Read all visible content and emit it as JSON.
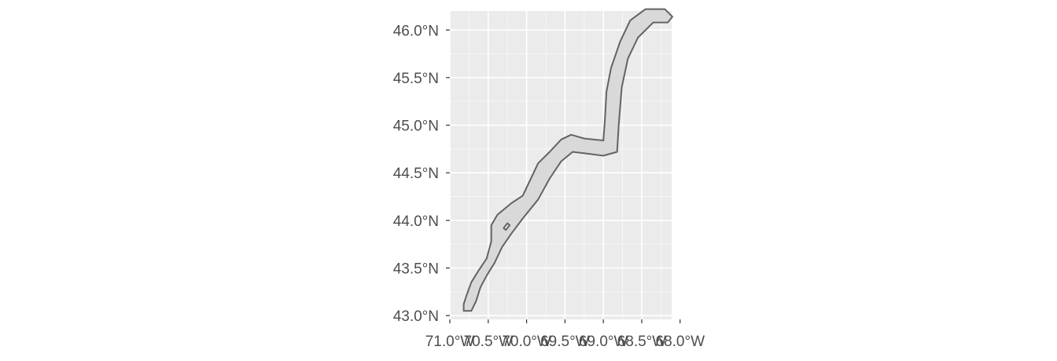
{
  "map": {
    "background_color": "#ebebeb",
    "buffer_fill": "#d9d9d9",
    "buffer_stroke": "#636363",
    "lon_range": [
      -71.0,
      -68.1
    ],
    "lat_range": [
      42.96,
      46.2
    ],
    "y_ticks": [
      {
        "value": 46.0,
        "label": "46.0°N"
      },
      {
        "value": 45.5,
        "label": "45.5°N"
      },
      {
        "value": 45.0,
        "label": "45.0°N"
      },
      {
        "value": 44.5,
        "label": "44.5°N"
      },
      {
        "value": 44.0,
        "label": "44.0°N"
      },
      {
        "value": 43.5,
        "label": "43.5°N"
      },
      {
        "value": 43.0,
        "label": "43.0°N"
      }
    ],
    "x_ticks": [
      {
        "value": -71.0,
        "label": "71.0°W"
      },
      {
        "value": -70.5,
        "label": "70.5°W"
      },
      {
        "value": -70.0,
        "label": "70.0°W"
      },
      {
        "value": -69.5,
        "label": "69.5°W"
      },
      {
        "value": -69.0,
        "label": "69.0°W"
      },
      {
        "value": -68.5,
        "label": "68.5°W"
      },
      {
        "value": -68.0,
        "label": "68.0°W"
      }
    ],
    "buffer_outline": [
      [
        -70.82,
        43.12
      ],
      [
        -70.78,
        43.22
      ],
      [
        -70.72,
        43.35
      ],
      [
        -70.62,
        43.48
      ],
      [
        -70.52,
        43.6
      ],
      [
        -70.46,
        43.78
      ],
      [
        -70.46,
        43.95
      ],
      [
        -70.38,
        44.06
      ],
      [
        -70.2,
        44.18
      ],
      [
        -70.05,
        44.26
      ],
      [
        -69.92,
        44.48
      ],
      [
        -69.85,
        44.6
      ],
      [
        -69.7,
        44.72
      ],
      [
        -69.55,
        44.85
      ],
      [
        -69.42,
        44.9
      ],
      [
        -69.25,
        44.86
      ],
      [
        -69.0,
        44.84
      ],
      [
        -68.98,
        45.05
      ],
      [
        -68.96,
        45.35
      ],
      [
        -68.9,
        45.6
      ],
      [
        -68.78,
        45.88
      ],
      [
        -68.65,
        46.1
      ],
      [
        -68.45,
        46.22
      ],
      [
        -68.2,
        46.22
      ],
      [
        -68.1,
        46.14
      ],
      [
        -68.16,
        46.08
      ],
      [
        -68.35,
        46.08
      ],
      [
        -68.55,
        45.92
      ],
      [
        -68.68,
        45.7
      ],
      [
        -68.76,
        45.4
      ],
      [
        -68.8,
        45.0
      ],
      [
        -68.82,
        44.72
      ],
      [
        -69.0,
        44.68
      ],
      [
        -69.2,
        44.7
      ],
      [
        -69.4,
        44.72
      ],
      [
        -69.55,
        44.62
      ],
      [
        -69.7,
        44.44
      ],
      [
        -69.85,
        44.22
      ],
      [
        -70.05,
        44.02
      ],
      [
        -70.2,
        43.86
      ],
      [
        -70.32,
        43.72
      ],
      [
        -70.42,
        43.55
      ],
      [
        -70.52,
        43.42
      ],
      [
        -70.6,
        43.3
      ],
      [
        -70.66,
        43.15
      ],
      [
        -70.72,
        43.05
      ],
      [
        -70.82,
        43.05
      ]
    ],
    "buffer_hole": [
      [
        -70.3,
        43.92
      ],
      [
        -70.25,
        43.97
      ],
      [
        -70.22,
        43.95
      ],
      [
        -70.27,
        43.9
      ]
    ]
  }
}
